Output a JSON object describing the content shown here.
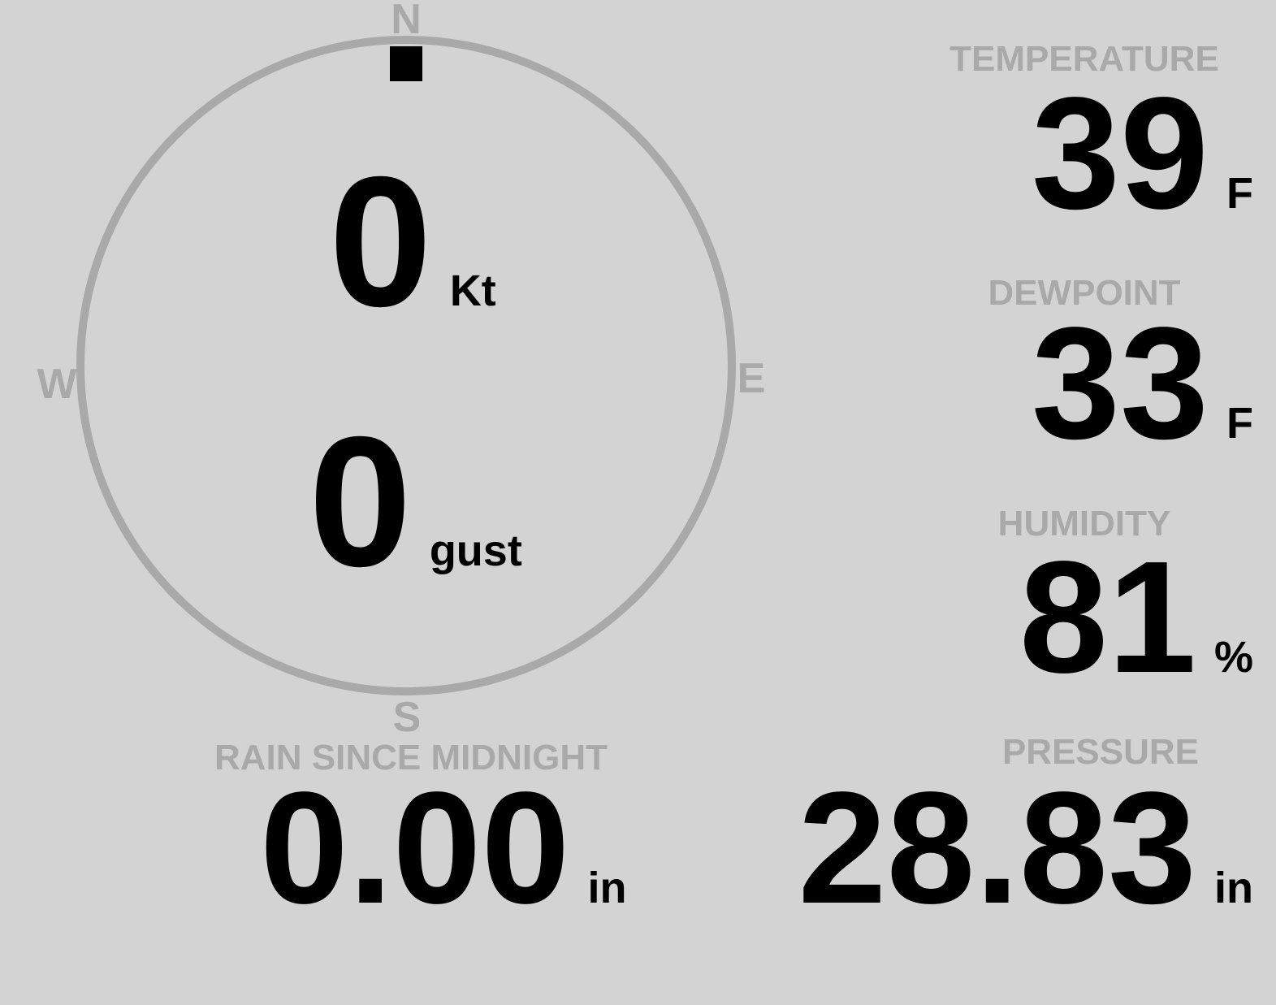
{
  "colors": {
    "background": "#d3d3d3",
    "muted": "#a9a9a9",
    "ink": "#000000"
  },
  "compass": {
    "cardinals": {
      "n": "N",
      "e": "E",
      "s": "S",
      "w": "W"
    },
    "direction_deg": 0,
    "speed": {
      "value": "0",
      "unit": "Kt"
    },
    "gust": {
      "value": "0",
      "unit": "gust"
    }
  },
  "readouts": {
    "temperature": {
      "label": "TEMPERATURE",
      "value": "39",
      "unit": "F"
    },
    "dewpoint": {
      "label": "DEWPOINT",
      "value": "33",
      "unit": "F"
    },
    "humidity": {
      "label": "HUMIDITY",
      "value": "81",
      "unit": "%"
    },
    "rain": {
      "label": "RAIN SINCE MIDNIGHT",
      "value": "0.00",
      "unit": "in"
    },
    "pressure": {
      "label": "PRESSURE",
      "value": "28.83",
      "unit": "in"
    }
  }
}
